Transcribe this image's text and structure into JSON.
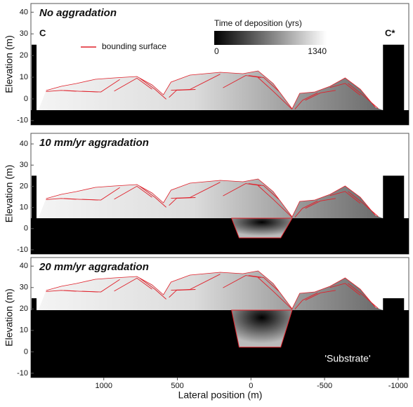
{
  "chart_data": [
    {
      "type": "section",
      "title": "No aggradation",
      "ylabel": "Elevation (m)",
      "ylim": [
        -12,
        44
      ],
      "yticks": [
        -10,
        0,
        10,
        20,
        30,
        40
      ],
      "annotations": [
        "C",
        "C*"
      ],
      "legend": "bounding surface",
      "line_color": "#e0202a",
      "colorbar": {
        "title": "Time of deposition (yrs)",
        "ticks": [
          0,
          1340
        ]
      }
    },
    {
      "type": "section",
      "title": "10 mm/yr aggradation",
      "ylabel": "Elevation (m)",
      "ylim": [
        -12,
        45
      ],
      "yticks": [
        -10,
        0,
        10,
        20,
        30,
        40
      ]
    },
    {
      "type": "section",
      "title": "20 mm/yr aggradation",
      "ylabel": "Elevation (m)",
      "ylim": [
        -12,
        44
      ],
      "yticks": [
        -10,
        0,
        10,
        20,
        30,
        40
      ],
      "xlabel": "Lateral position (m)",
      "xlim": [
        1495,
        -1077
      ],
      "xticks": [
        1000,
        500,
        0,
        -500,
        -1000
      ],
      "annotation": "'Substrate'"
    }
  ]
}
